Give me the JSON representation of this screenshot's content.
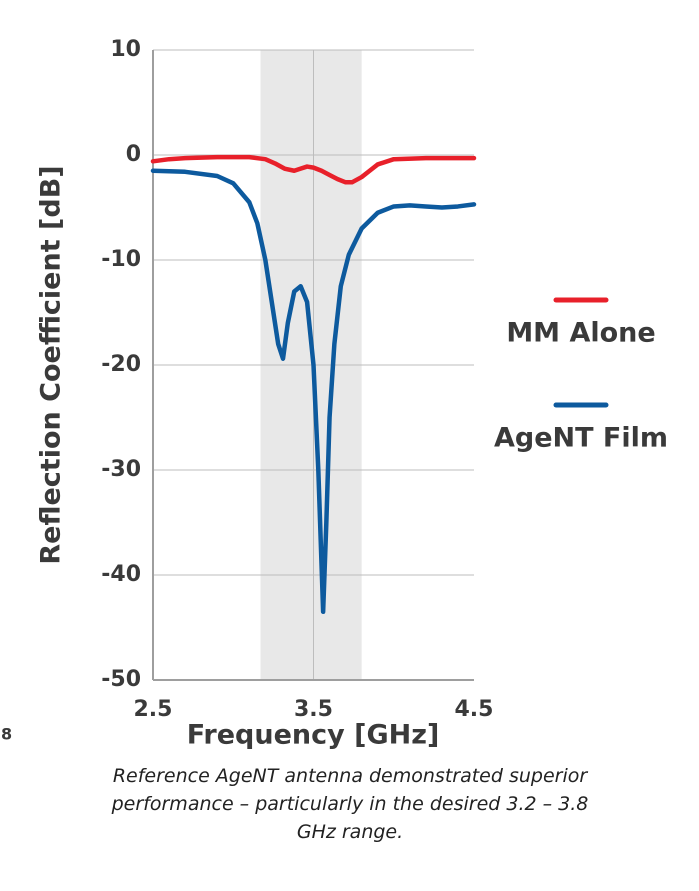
{
  "chart_data": {
    "type": "line",
    "xlabel": "Frequency [GHz]",
    "ylabel": "Reflection Coefficient [dB]",
    "xlim": [
      2.5,
      4.5
    ],
    "xticks": [
      2.5,
      3.5,
      4.5
    ],
    "ylim": [
      -50,
      10
    ],
    "yticks": [
      10,
      0,
      -10,
      -20,
      -30,
      -40,
      -50
    ],
    "grid": true,
    "legend": "right",
    "highlight_band": [
      3.17,
      3.8
    ],
    "band_color": "#e8e8e8",
    "series": [
      {
        "name": "MM Alone",
        "color": "#e8202a",
        "x": [
          2.5,
          2.6,
          2.7,
          2.9,
          3.0,
          3.1,
          3.2,
          3.26,
          3.32,
          3.38,
          3.42,
          3.46,
          3.5,
          3.55,
          3.6,
          3.65,
          3.7,
          3.74,
          3.8,
          3.85,
          3.9,
          4.0,
          4.2,
          4.5
        ],
        "values": [
          -0.6,
          -0.4,
          -0.3,
          -0.2,
          -0.2,
          -0.2,
          -0.4,
          -0.8,
          -1.3,
          -1.5,
          -1.3,
          -1.1,
          -1.2,
          -1.5,
          -1.9,
          -2.3,
          -2.6,
          -2.6,
          -2.1,
          -1.5,
          -0.9,
          -0.4,
          -0.3,
          -0.3
        ]
      },
      {
        "name": "AgeNT Film",
        "color": "#0d5a9e",
        "x": [
          2.5,
          2.7,
          2.9,
          3.0,
          3.1,
          3.15,
          3.2,
          3.24,
          3.28,
          3.31,
          3.34,
          3.38,
          3.42,
          3.46,
          3.5,
          3.53,
          3.56,
          3.58,
          3.6,
          3.63,
          3.67,
          3.72,
          3.8,
          3.9,
          4.0,
          4.1,
          4.2,
          4.3,
          4.4,
          4.5
        ],
        "values": [
          -1.5,
          -1.6,
          -2.0,
          -2.7,
          -4.5,
          -6.5,
          -10,
          -14,
          -18,
          -19.4,
          -16,
          -13,
          -12.5,
          -14,
          -20,
          -30,
          -43.5,
          -35,
          -25,
          -18,
          -12.5,
          -9.5,
          -7,
          -5.5,
          -4.9,
          -4.8,
          -4.9,
          -5.0,
          -4.9,
          -4.7
        ]
      }
    ],
    "caption": "Reference AgeNT antenna demonstrated superior performance – particularly in the desired 3.2 – 3.8 GHz range."
  },
  "fragment_text": "8"
}
